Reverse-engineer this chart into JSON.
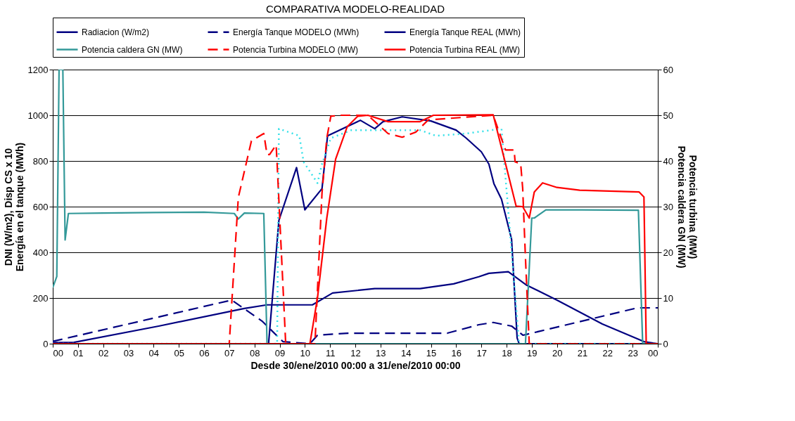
{
  "chart_data": {
    "type": "line",
    "title": "COMPARATIVA MODELO-REALIDAD",
    "xlabel": "Desde 30/ene/2010 00:00 a 31/ene/2010 00:00",
    "ylabel": "DNI (W/m2),  Disp CS x 10\nEnergía en el tanque (MWh)",
    "y2label": "Potencia turbina (MW)\nPotencia caldera GN (MW)",
    "xlim": [
      0,
      24
    ],
    "xticks": [
      {
        "value": 0,
        "label": "00"
      },
      {
        "value": 1,
        "label": "01"
      },
      {
        "value": 2,
        "label": "02"
      },
      {
        "value": 3,
        "label": "03"
      },
      {
        "value": 4,
        "label": "04"
      },
      {
        "value": 5,
        "label": "05"
      },
      {
        "value": 6,
        "label": "06"
      },
      {
        "value": 7,
        "label": "07"
      },
      {
        "value": 8,
        "label": "08"
      },
      {
        "value": 9,
        "label": "09"
      },
      10,
      11,
      12,
      13,
      14,
      15,
      16,
      17,
      18,
      19,
      20,
      21,
      22,
      23,
      {
        "value": 24,
        "label": "00"
      }
    ],
    "ylim": [
      0,
      1200
    ],
    "yticks": [
      0,
      200,
      400,
      600,
      800,
      1000,
      1200
    ],
    "y2lim": [
      0,
      60
    ],
    "y2ticks": [
      0,
      10,
      20,
      30,
      40,
      50,
      60
    ],
    "grid": "y",
    "legend": "top",
    "marker": "none",
    "series": [
      {
        "name": "Radiacion (W/m2)",
        "color": "#000080",
        "line_style": "solid",
        "x": [
          0,
          8.56,
          8.97,
          9.67,
          10.0,
          10.68,
          10.9,
          12.2,
          12.77,
          13.1,
          13.86,
          15,
          16,
          16.4,
          17,
          17.3,
          17.5,
          17.8,
          18.2,
          18.42,
          18.5,
          24
        ],
        "values": [
          0,
          0,
          540,
          771,
          586,
          679,
          910,
          978,
          941,
          972,
          993,
          975,
          935,
          900,
          840,
          786,
          700,
          632,
          457,
          25,
          0,
          0
        ]
      },
      {
        "name": "Energía Tanque MODELO (MWh)",
        "color": "#000080",
        "line_style": "dashed",
        "x": [
          0,
          7.1,
          8.3,
          9.13,
          10.2,
          10.5,
          11.7,
          15.65,
          16.9,
          17.47,
          18.2,
          18.65,
          23.2,
          24
        ],
        "values": [
          10,
          191,
          99,
          9,
          0,
          37,
          46,
          46,
          83,
          93,
          77,
          37,
          157,
          157
        ]
      },
      {
        "name": "Energía Tanque REAL (MWh)",
        "color": "#000080",
        "line_style": "solid",
        "x": [
          0,
          0.84,
          4.2,
          7.6,
          8.5,
          10.3,
          11.1,
          12.77,
          14.57,
          15.9,
          16.9,
          17.3,
          18.07,
          18.8,
          20.0,
          21.8,
          23.45,
          24
        ],
        "values": [
          5,
          6,
          77,
          154,
          170,
          170,
          222,
          241,
          241,
          262,
          293,
          308,
          315,
          256,
          191,
          86,
          9,
          0
        ]
      },
      {
        "name": "Potencia caldera GN (MW)",
        "color": "#339999",
        "line_style": "solid",
        "axis": "y2",
        "x": [
          0,
          0.16,
          0.25,
          0.4,
          0.49,
          0.62,
          2,
          4,
          6,
          7.2,
          7.36,
          7.6,
          8.37,
          8.5,
          18.75,
          19.0,
          19.1,
          19.56,
          21,
          23.23,
          23.4,
          24
        ],
        "values": [
          12.3,
          14.7,
          60,
          60,
          22.7,
          28.5,
          28.6,
          28.7,
          28.8,
          28.5,
          27.3,
          28.6,
          28.5,
          0,
          0,
          27.5,
          27.5,
          29.3,
          29.3,
          29.2,
          0,
          0
        ]
      },
      {
        "name": "Potencia Turbina MODELO (MW)",
        "color": "#ff0000",
        "line_style": "dashed",
        "axis": "y2",
        "x": [
          0,
          7.0,
          7.36,
          7.88,
          8.37,
          8.5,
          8.6,
          8.86,
          8.9,
          9.24,
          10.4,
          10.68,
          10.87,
          11.03,
          11.4,
          12.5,
          13.3,
          13.86,
          14.4,
          14.9,
          17.47,
          17.96,
          18.3,
          18.34,
          18.56,
          18.64,
          18.75,
          18.9,
          24
        ],
        "values": [
          0,
          0,
          32,
          44.4,
          46,
          41.4,
          41.4,
          43.5,
          39.4,
          0,
          0,
          33,
          45,
          49.8,
          50,
          50,
          46,
          45.2,
          46.3,
          49,
          50,
          42.4,
          42.4,
          39.8,
          39.4,
          34,
          18.8,
          0,
          0
        ]
      },
      {
        "name": "Potencia Turbina REAL (MW)",
        "color": "#ff0000",
        "line_style": "solid",
        "axis": "y2",
        "x": [
          0,
          10.2,
          10.5,
          10.87,
          11.22,
          11.68,
          12.1,
          12.5,
          13.3,
          14.57,
          15.1,
          17.47,
          17.96,
          18.38,
          18.64,
          18.9,
          19.1,
          19.43,
          20.0,
          20.9,
          23.26,
          23.45,
          23.54,
          24
        ],
        "values": [
          0,
          0,
          10,
          27.5,
          40.4,
          47.5,
          49.8,
          50,
          48.6,
          48.6,
          50,
          50.1,
          39.4,
          30.1,
          30,
          27.5,
          33.2,
          35.2,
          34.2,
          33.6,
          33.2,
          32.1,
          0,
          0
        ]
      },
      {
        "color": "#33e0e8",
        "line_style": "dotted",
        "x": [
          0,
          8.9,
          8.97,
          9.78,
          9.95,
          10.5,
          10.68,
          11.03,
          11.85,
          14.57,
          15.2,
          16.4,
          17.8,
          18.5,
          24
        ],
        "values": [
          0,
          0,
          941,
          910,
          796,
          703,
          787,
          900,
          935,
          935,
          910,
          920,
          941,
          0,
          0
        ]
      }
    ]
  }
}
